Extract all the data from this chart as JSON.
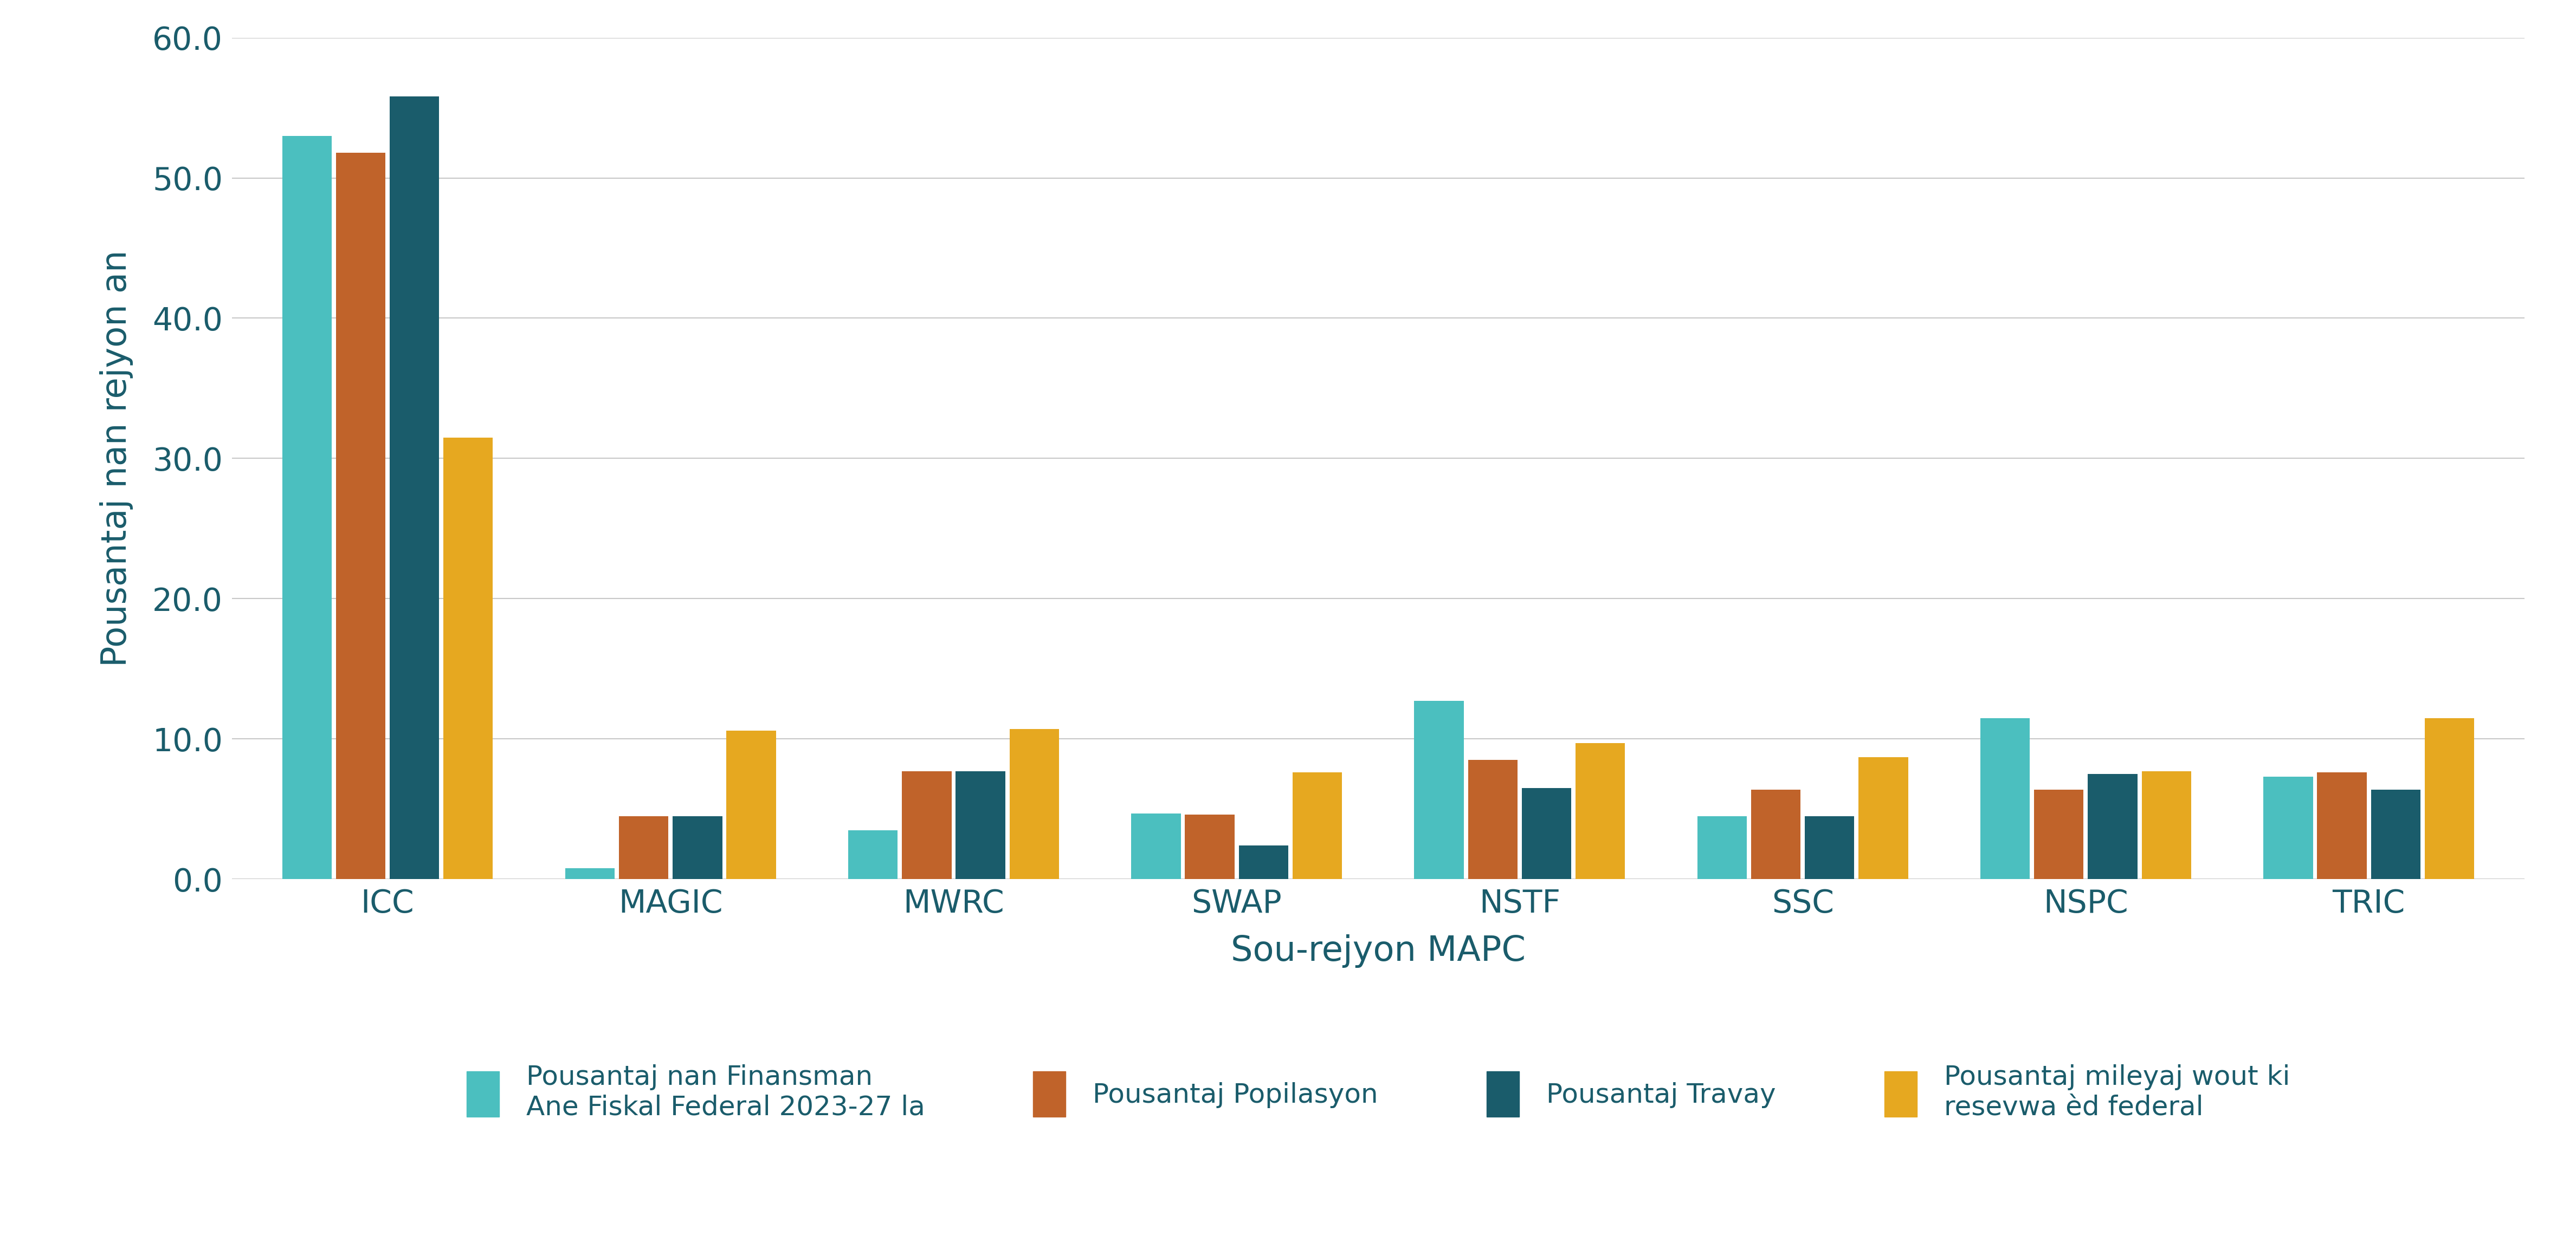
{
  "categories": [
    "ICC",
    "MAGIC",
    "MWRC",
    "SWAP",
    "NSTF",
    "SSC",
    "NSPC",
    "TRIC"
  ],
  "series": {
    "financing": [
      53.0,
      0.8,
      3.5,
      4.7,
      12.7,
      4.5,
      11.5,
      7.3
    ],
    "population": [
      51.8,
      4.5,
      7.7,
      4.6,
      8.5,
      6.4,
      6.4,
      7.6
    ],
    "employment": [
      55.8,
      4.5,
      7.7,
      2.4,
      6.5,
      4.5,
      7.5,
      6.4
    ],
    "road_miles": [
      31.5,
      10.6,
      10.7,
      7.6,
      9.7,
      8.7,
      7.7,
      11.5
    ]
  },
  "colors": {
    "financing": "#4BBFBF",
    "population": "#C0632A",
    "employment": "#1A5C6B",
    "road_miles": "#E6A820"
  },
  "legend_labels": {
    "financing": "Pousantaj nan Finansman\nAne Fiskal Federal 2023-27 la",
    "population": "Pousantaj Popilasyon",
    "employment": "Pousantaj Travay",
    "road_miles": "Pousantaj mileyaj wout ki\nresevwa èd federal"
  },
  "ylabel": "Pousantaj nan rejyon an",
  "xlabel": "Sou-rejyon MAPC",
  "ylim": [
    0,
    60
  ],
  "yticks": [
    0.0,
    10.0,
    20.0,
    30.0,
    40.0,
    50.0,
    60.0
  ],
  "background_color": "#FFFFFF",
  "grid_color": "#C8C8C8",
  "text_color": "#1A5C6B",
  "bar_width": 0.19,
  "axis_label_fontsize": 46,
  "tick_fontsize": 42,
  "legend_fontsize": 36
}
